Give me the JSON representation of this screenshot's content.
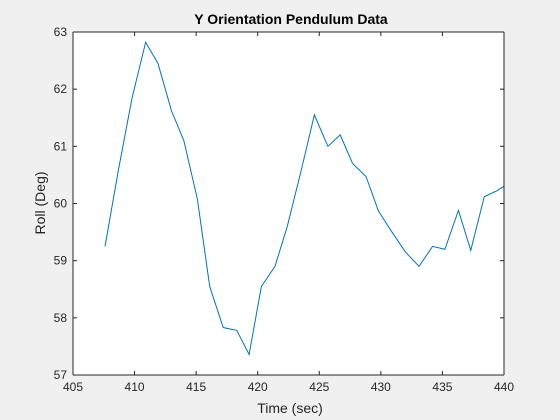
{
  "chart_data": {
    "type": "line",
    "title": "Y Orientation Pendulum Data",
    "xlabel": "Time (sec)",
    "ylabel": "Roll (Deg)",
    "xlim": [
      405,
      440
    ],
    "ylim": [
      57,
      63
    ],
    "xticks": [
      405,
      410,
      415,
      420,
      425,
      430,
      435,
      440
    ],
    "yticks": [
      57,
      58,
      59,
      60,
      61,
      62,
      63
    ],
    "grid": false,
    "legend": "none",
    "line_color": "#0072bd",
    "series": [
      {
        "x": [
          407.6,
          408.7,
          409.8,
          410.9,
          411.9,
          413.0,
          414.0,
          415.1,
          416.1,
          417.2,
          418.3,
          419.3,
          420.3,
          421.4,
          422.4,
          423.5,
          424.6,
          425.7,
          426.7,
          427.7,
          428.8,
          429.8,
          430.9,
          432.0,
          433.1,
          434.2,
          435.2,
          436.3,
          437.3,
          438.4,
          439.4,
          440.0
        ],
        "values": [
          59.25,
          60.6,
          61.85,
          62.82,
          62.45,
          61.62,
          61.1,
          60.08,
          58.55,
          57.83,
          57.78,
          57.36,
          58.55,
          58.9,
          59.6,
          60.55,
          61.55,
          61.0,
          61.2,
          60.7,
          60.47,
          59.87,
          59.5,
          59.15,
          58.9,
          59.25,
          59.2,
          59.88,
          59.18,
          60.12,
          60.22,
          60.3
        ]
      }
    ]
  }
}
